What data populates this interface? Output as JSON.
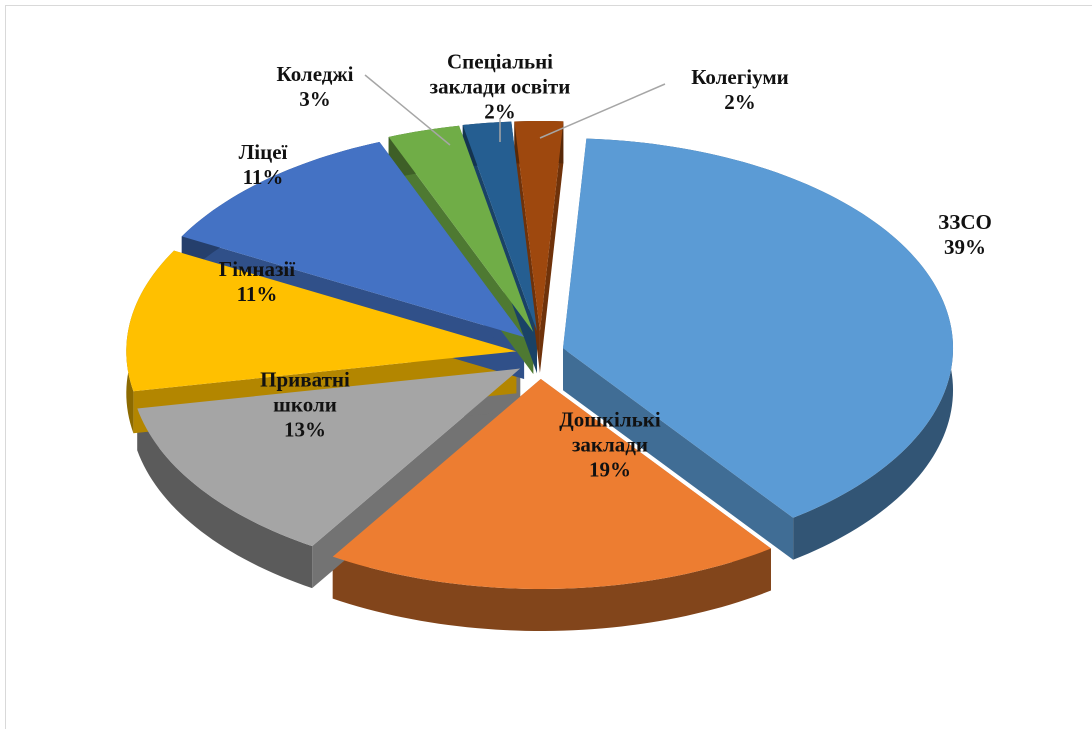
{
  "chart_data": {
    "type": "pie",
    "categories": [
      "ЗЗСО",
      "Дошкількі заклади",
      "Приватні школи",
      "Гімназії",
      "Ліцеї",
      "Коледжі",
      "Спеціальні заклади освіти",
      "Колегіуми"
    ],
    "values": [
      39,
      19,
      13,
      11,
      11,
      3,
      2,
      2
    ],
    "value_labels": [
      "39%",
      "19%",
      "13%",
      "11%",
      "11%",
      "3%",
      "2%",
      "2%"
    ],
    "colors": [
      "#5b9bd5",
      "#ed7d31",
      "#a5a5a5",
      "#ffc000",
      "#4472c4",
      "#70ad47",
      "#255e91",
      "#9e480e"
    ]
  }
}
